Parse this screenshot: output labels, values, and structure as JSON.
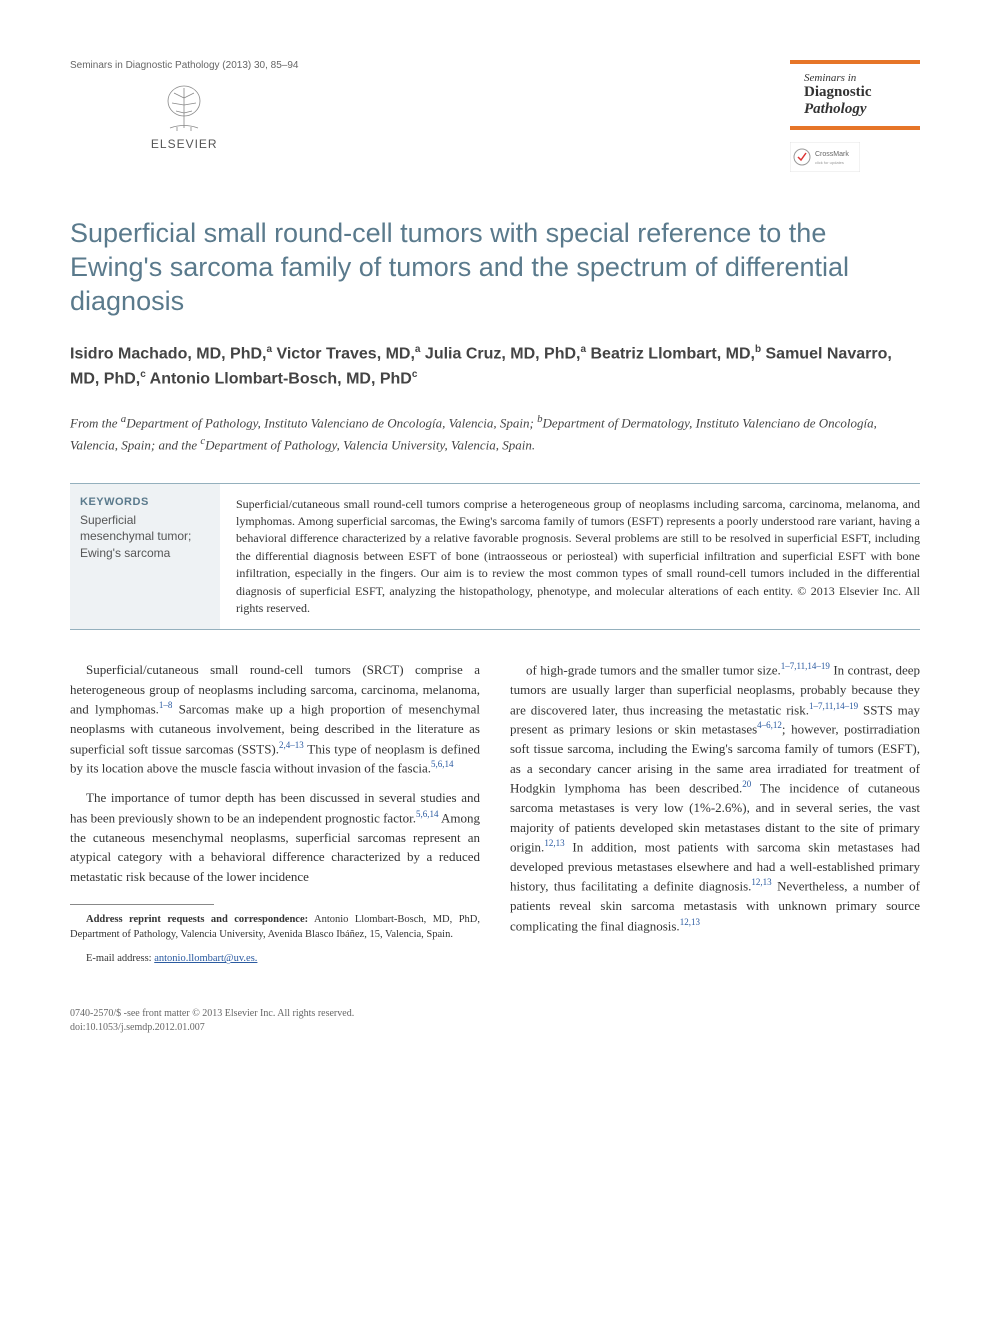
{
  "meta": {
    "journal_ref": "Seminars in Diagnostic Pathology (2013) 30, 85–94",
    "publisher": "ELSEVIER",
    "journal_box": {
      "line1": "Seminars in",
      "line2": "Diagnostic",
      "line3": "Pathology"
    }
  },
  "title": "Superficial small round-cell tumors with special reference to the Ewing's sarcoma family of tumors and the spectrum of differential diagnosis",
  "authors_html": "Isidro Machado, MD, PhD,<sup>a</sup> Victor Traves, MD,<sup>a</sup> Julia Cruz, MD, PhD,<sup>a</sup> Beatriz Llombart, MD,<sup>b</sup> Samuel Navarro, MD, PhD,<sup>c</sup> Antonio Llombart-Bosch, MD, PhD<sup>c</sup>",
  "affiliations_html": "From the <sup>a</sup>Department of Pathology, Instituto Valenciano de Oncología, Valencia, Spain; <sup>b</sup>Department of Dermatology, Instituto Valenciano de Oncología, Valencia, Spain; and the <sup>c</sup>Department of Pathology, Valencia University, Valencia, Spain.",
  "keywords": {
    "heading": "KEYWORDS",
    "text": "Superficial mesenchymal tumor; Ewing's sarcoma"
  },
  "abstract": "Superficial/cutaneous small round-cell tumors comprise a heterogeneous group of neoplasms including sarcoma, carcinoma, melanoma, and lymphomas. Among superficial sarcomas, the Ewing's sarcoma family of tumors (ESFT) represents a poorly understood rare variant, having a behavioral difference characterized by a relative favorable prognosis. Several problems are still to be resolved in superficial ESFT, including the differential diagnosis between ESFT of bone (intraosseous or periosteal) with superficial infiltration and superficial ESFT with bone infiltration, especially in the fingers. Our aim is to review the most common types of small round-cell tumors included in the differential diagnosis of superficial ESFT, analyzing the histopathology, phenotype, and molecular alterations of each entity. © 2013 Elsevier Inc. All rights reserved.",
  "body": {
    "left": [
      "Superficial/cutaneous small round-cell tumors (SRCT) comprise a heterogeneous group of neoplasms including sarcoma, carcinoma, melanoma, and lymphomas.<sup>1–8</sup> Sarcomas make up a high proportion of mesenchymal neoplasms with cutaneous involvement, being described in the literature as superficial soft tissue sarcomas (SSTS).<sup>2,4–13</sup> This type of neoplasm is defined by its location above the muscle fascia without invasion of the fascia.<sup>5,6,14</sup>",
      "The importance of tumor depth has been discussed in several studies and has been previously shown to be an independent prognostic factor.<sup>5,6,14</sup> Among the cutaneous mesenchymal neoplasms, superficial sarcomas represent an atypical category with a behavioral difference characterized by a reduced metastatic risk because of the lower incidence"
    ],
    "right": [
      "of high-grade tumors and the smaller tumor size.<sup>1–7,11,14–19</sup> In contrast, deep tumors are usually larger than superficial neoplasms, probably because they are discovered later, thus increasing the metastatic risk.<sup>1–7,11,14–19</sup> SSTS may present as primary lesions or skin metastases<sup>4–6,12</sup>; however, postirradiation soft tissue sarcoma, including the Ewing's sarcoma family of tumors (ESFT), as a secondary cancer arising in the same area irradiated for treatment of Hodgkin lymphoma has been described.<sup>20</sup> The incidence of cutaneous sarcoma metastases is very low (1%-2.6%), and in several series, the vast majority of patients developed skin metastases distant to the site of primary origin.<sup>12,13</sup> In addition, most patients with sarcoma skin metastases had developed previous metastases elsewhere and had a well-established primary history, thus facilitating a definite diagnosis.<sup>12,13</sup> Nevertheless, a number of patients reveal skin sarcoma metastasis with unknown primary source complicating the final diagnosis.<sup>12,13</sup>"
    ]
  },
  "footnote": {
    "correspondence_label": "Address reprint requests and correspondence:",
    "correspondence_text": " Antonio Llombart-Bosch, MD, PhD, Department of Pathology, Valencia University, Avenida Blasco Ibáñez, 15, Valencia, Spain.",
    "email_label": "E-mail address: ",
    "email": "antonio.llombart@uv.es."
  },
  "footer": {
    "line1": "0740-2570/$ -see front matter © 2013 Elsevier Inc. All rights reserved.",
    "line2": "doi:10.1053/j.semdp.2012.01.007"
  },
  "colors": {
    "accent_orange": "#e67528",
    "heading_blue": "#5a7a8c",
    "link_blue": "#2a5aa0",
    "keywords_bg": "#eef2f4",
    "rule_blue": "#94b0bd"
  }
}
